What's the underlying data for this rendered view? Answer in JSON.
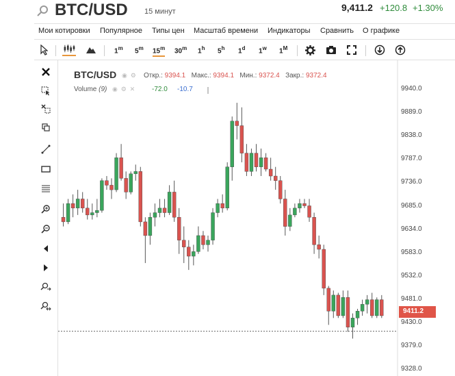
{
  "header": {
    "pair": "BTC/USD",
    "timeframe": "15 минут",
    "price": "9,411.2",
    "change": "+120.8",
    "change_pct": "+1.30%"
  },
  "menu": [
    "Мои котировки",
    "Популярное",
    "Типы цен",
    "Масштаб времени",
    "Индикаторы",
    "Сравнить",
    "О графике"
  ],
  "toolbar": {
    "intervals": [
      "1m",
      "5m",
      "15m",
      "30m",
      "1h",
      "5h",
      "1d",
      "1w",
      "1M"
    ],
    "active_interval": "15m"
  },
  "legend": {
    "symbol": "BTC/USD",
    "open_label": "Откр.:",
    "open": "9394.1",
    "high_label": "Макс.:",
    "high": "9394.1",
    "low_label": "Мин.:",
    "low": "9372.4",
    "close_label": "Закр.:",
    "close": "9372.4",
    "volume_label": "Volume",
    "volume_param": "(9)",
    "volume_v1": "-72.0",
    "volume_v2": "-10.7"
  },
  "current_price_tag": "9411.2",
  "colors": {
    "up": "#3aa55c",
    "down": "#d9534f",
    "accent": "#e8963a"
  },
  "chart_data": {
    "type": "candlestick",
    "y_ticks": [
      "9940.0",
      "9889.0",
      "9838.0",
      "9787.0",
      "9736.0",
      "9685.0",
      "9634.0",
      "9583.0",
      "9532.0",
      "9481.0",
      "9430.0",
      "9379.0",
      "9328.0"
    ],
    "ylim": [
      9328,
      9970
    ],
    "current_price": 9411.2,
    "candles": [
      {
        "o": 9660,
        "h": 9690,
        "l": 9640,
        "c": 9650
      },
      {
        "o": 9650,
        "h": 9700,
        "l": 9645,
        "c": 9690
      },
      {
        "o": 9690,
        "h": 9710,
        "l": 9660,
        "c": 9680
      },
      {
        "o": 9680,
        "h": 9720,
        "l": 9665,
        "c": 9700
      },
      {
        "o": 9700,
        "h": 9715,
        "l": 9670,
        "c": 9680
      },
      {
        "o": 9680,
        "h": 9700,
        "l": 9655,
        "c": 9665
      },
      {
        "o": 9665,
        "h": 9690,
        "l": 9655,
        "c": 9670
      },
      {
        "o": 9670,
        "h": 9700,
        "l": 9660,
        "c": 9675
      },
      {
        "o": 9675,
        "h": 9745,
        "l": 9670,
        "c": 9740
      },
      {
        "o": 9740,
        "h": 9750,
        "l": 9720,
        "c": 9730
      },
      {
        "o": 9730,
        "h": 9745,
        "l": 9700,
        "c": 9720
      },
      {
        "o": 9720,
        "h": 9800,
        "l": 9715,
        "c": 9790
      },
      {
        "o": 9790,
        "h": 9820,
        "l": 9740,
        "c": 9745
      },
      {
        "o": 9745,
        "h": 9760,
        "l": 9700,
        "c": 9715
      },
      {
        "o": 9715,
        "h": 9760,
        "l": 9710,
        "c": 9755
      },
      {
        "o": 9755,
        "h": 9775,
        "l": 9740,
        "c": 9760
      },
      {
        "o": 9760,
        "h": 9770,
        "l": 9640,
        "c": 9650
      },
      {
        "o": 9650,
        "h": 9660,
        "l": 9560,
        "c": 9620
      },
      {
        "o": 9620,
        "h": 9670,
        "l": 9600,
        "c": 9660
      },
      {
        "o": 9660,
        "h": 9690,
        "l": 9640,
        "c": 9670
      },
      {
        "o": 9670,
        "h": 9700,
        "l": 9660,
        "c": 9680
      },
      {
        "o": 9680,
        "h": 9700,
        "l": 9660,
        "c": 9670
      },
      {
        "o": 9670,
        "h": 9730,
        "l": 9665,
        "c": 9715
      },
      {
        "o": 9715,
        "h": 9740,
        "l": 9650,
        "c": 9660
      },
      {
        "o": 9660,
        "h": 9680,
        "l": 9580,
        "c": 9610
      },
      {
        "o": 9610,
        "h": 9640,
        "l": 9560,
        "c": 9595
      },
      {
        "o": 9595,
        "h": 9610,
        "l": 9545,
        "c": 9575
      },
      {
        "o": 9575,
        "h": 9600,
        "l": 9555,
        "c": 9585
      },
      {
        "o": 9585,
        "h": 9640,
        "l": 9580,
        "c": 9620
      },
      {
        "o": 9620,
        "h": 9630,
        "l": 9590,
        "c": 9600
      },
      {
        "o": 9600,
        "h": 9620,
        "l": 9585,
        "c": 9610
      },
      {
        "o": 9610,
        "h": 9680,
        "l": 9600,
        "c": 9670
      },
      {
        "o": 9670,
        "h": 9700,
        "l": 9660,
        "c": 9690
      },
      {
        "o": 9690,
        "h": 9710,
        "l": 9670,
        "c": 9680
      },
      {
        "o": 9680,
        "h": 9780,
        "l": 9675,
        "c": 9770
      },
      {
        "o": 9770,
        "h": 9880,
        "l": 9740,
        "c": 9870
      },
      {
        "o": 9870,
        "h": 9910,
        "l": 9830,
        "c": 9860
      },
      {
        "o": 9860,
        "h": 9900,
        "l": 9780,
        "c": 9800
      },
      {
        "o": 9800,
        "h": 9820,
        "l": 9750,
        "c": 9760
      },
      {
        "o": 9760,
        "h": 9810,
        "l": 9750,
        "c": 9800
      },
      {
        "o": 9800,
        "h": 9820,
        "l": 9760,
        "c": 9770
      },
      {
        "o": 9770,
        "h": 9810,
        "l": 9750,
        "c": 9790
      },
      {
        "o": 9790,
        "h": 9800,
        "l": 9760,
        "c": 9765
      },
      {
        "o": 9765,
        "h": 9790,
        "l": 9740,
        "c": 9750
      },
      {
        "o": 9750,
        "h": 9770,
        "l": 9720,
        "c": 9740
      },
      {
        "o": 9740,
        "h": 9750,
        "l": 9690,
        "c": 9700
      },
      {
        "o": 9700,
        "h": 9720,
        "l": 9620,
        "c": 9640
      },
      {
        "o": 9640,
        "h": 9680,
        "l": 9630,
        "c": 9665
      },
      {
        "o": 9665,
        "h": 9690,
        "l": 9660,
        "c": 9680
      },
      {
        "o": 9680,
        "h": 9700,
        "l": 9670,
        "c": 9690
      },
      {
        "o": 9690,
        "h": 9700,
        "l": 9680,
        "c": 9685
      },
      {
        "o": 9685,
        "h": 9700,
        "l": 9650,
        "c": 9660
      },
      {
        "o": 9660,
        "h": 9670,
        "l": 9580,
        "c": 9600
      },
      {
        "o": 9600,
        "h": 9620,
        "l": 9570,
        "c": 9590
      },
      {
        "o": 9590,
        "h": 9600,
        "l": 9490,
        "c": 9505
      },
      {
        "o": 9505,
        "h": 9510,
        "l": 9425,
        "c": 9455
      },
      {
        "o": 9455,
        "h": 9500,
        "l": 9440,
        "c": 9490
      },
      {
        "o": 9490,
        "h": 9495,
        "l": 9440,
        "c": 9445
      },
      {
        "o": 9445,
        "h": 9500,
        "l": 9440,
        "c": 9485
      },
      {
        "o": 9485,
        "h": 9500,
        "l": 9410,
        "c": 9420
      },
      {
        "o": 9420,
        "h": 9450,
        "l": 9395,
        "c": 9440
      },
      {
        "o": 9440,
        "h": 9460,
        "l": 9425,
        "c": 9455
      },
      {
        "o": 9455,
        "h": 9480,
        "l": 9445,
        "c": 9470
      },
      {
        "o": 9470,
        "h": 9490,
        "l": 9450,
        "c": 9480
      },
      {
        "o": 9480,
        "h": 9495,
        "l": 9440,
        "c": 9445
      },
      {
        "o": 9445,
        "h": 9485,
        "l": 9440,
        "c": 9480
      },
      {
        "o": 9480,
        "h": 9490,
        "l": 9440,
        "c": 9445
      }
    ]
  }
}
